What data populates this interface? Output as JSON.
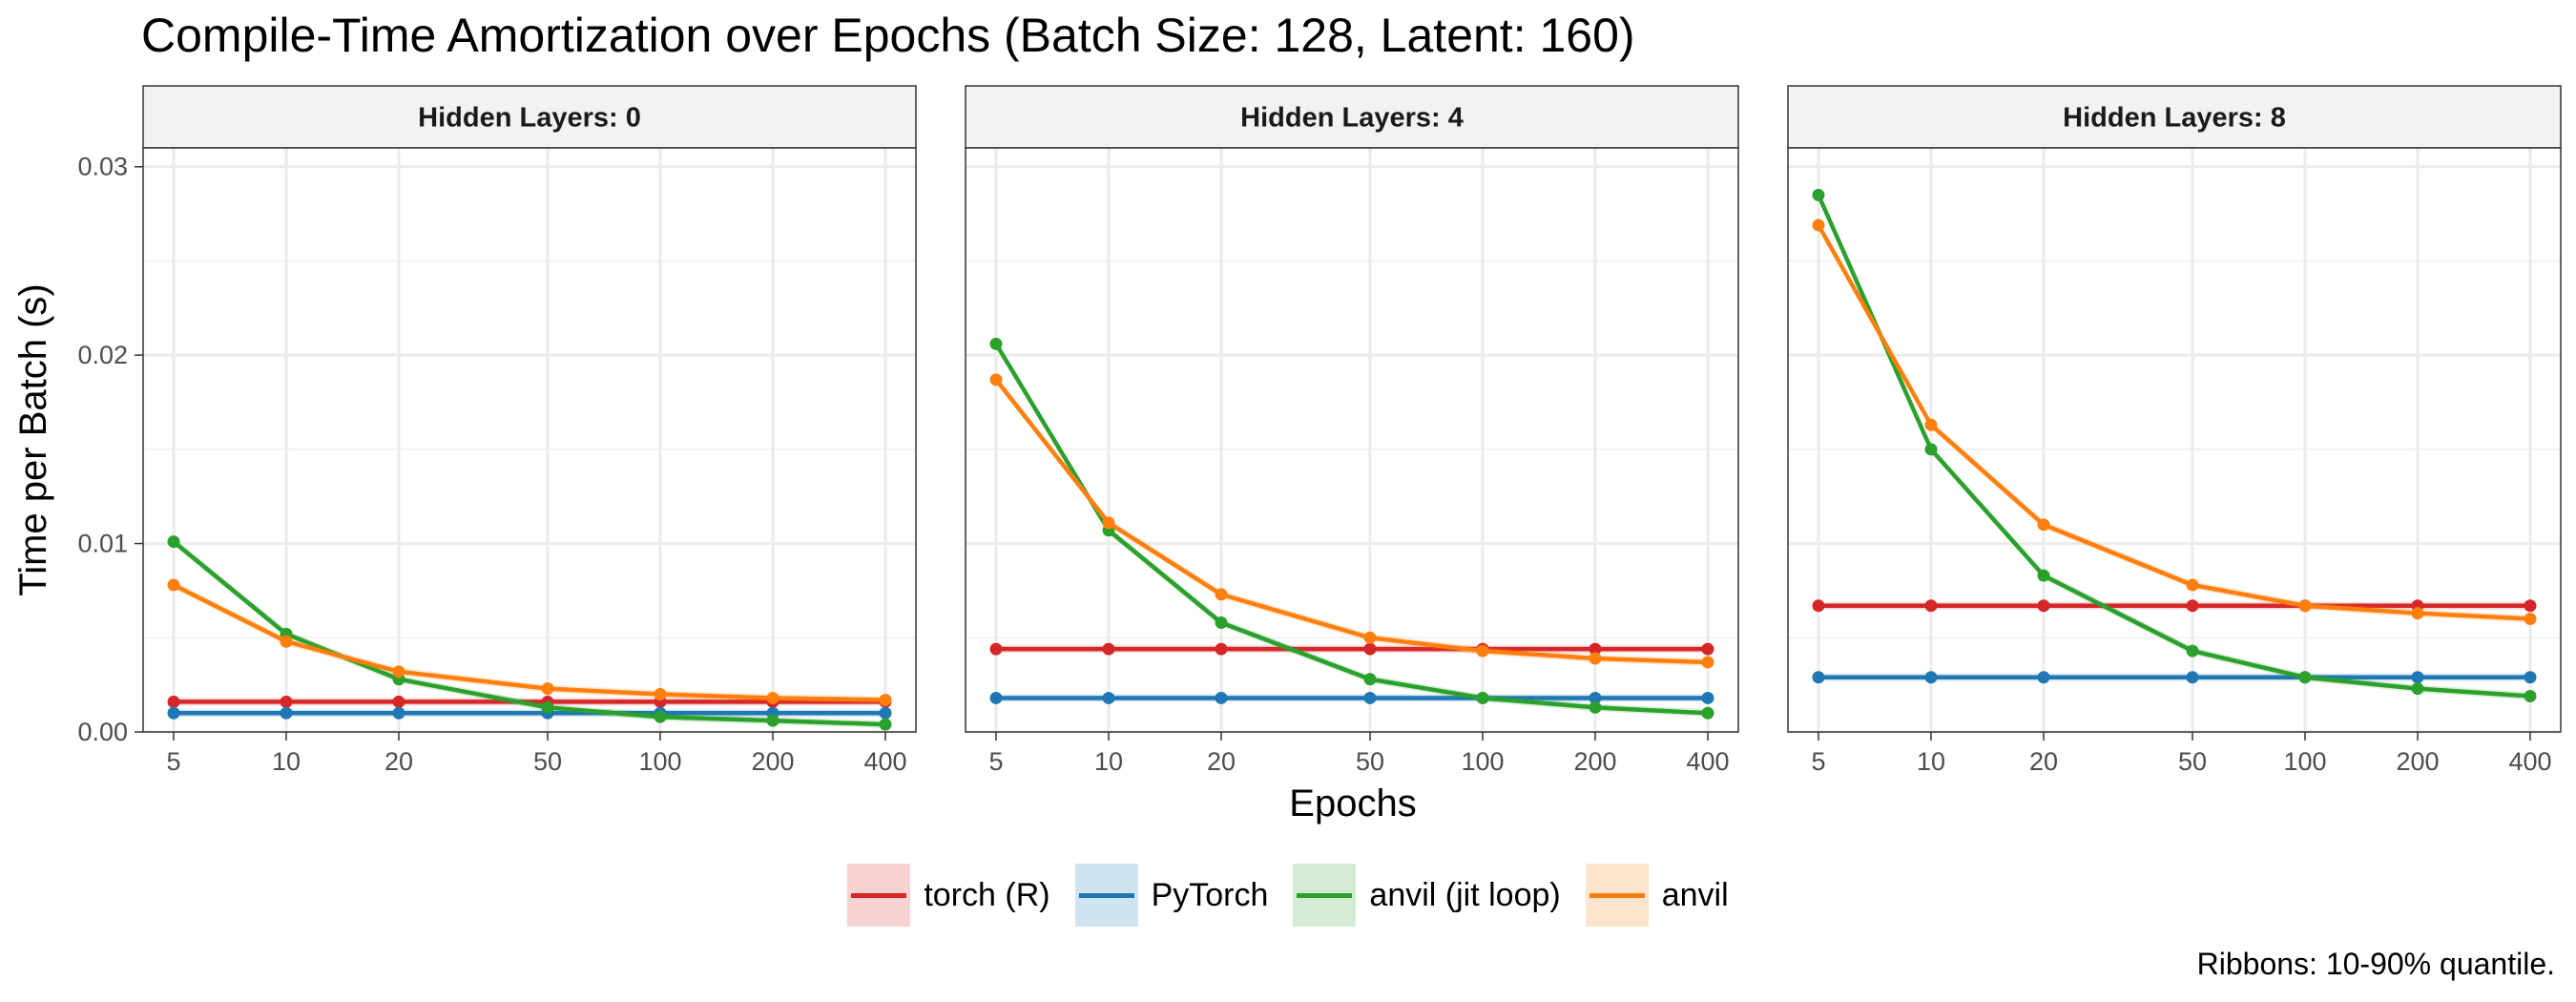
{
  "title": "Compile-Time Amortization over Epochs (Batch Size: 128, Latent: 160)",
  "caption": "Ribbons: 10-90% quantile.",
  "chart_data": {
    "type": "line",
    "title": "Compile-Time Amortization over Epochs (Batch Size: 128, Latent: 160)",
    "xlabel": "Epochs",
    "ylabel": "Time per Batch (s)",
    "x_scale": "log",
    "x": [
      5,
      10,
      20,
      50,
      100,
      200,
      400
    ],
    "x_ticks": [
      "5",
      "10",
      "20",
      "50",
      "100",
      "200",
      "400"
    ],
    "ylim": [
      0,
      0.031
    ],
    "y_ticks": [
      0,
      0.01,
      0.02,
      0.03
    ],
    "y_tick_labels": [
      "0.00",
      "0.01",
      "0.02",
      "0.03"
    ],
    "grid": true,
    "legend_position": "bottom",
    "series_colors": {
      "torch (R)": "#d62728",
      "PyTorch": "#1f77b4",
      "anvil (jit loop)": "#2ca02c",
      "anvil": "#ff7f0e"
    },
    "panels": [
      {
        "strip": "Hidden Layers: 0",
        "series": [
          {
            "name": "torch (R)",
            "values": [
              0.0016,
              0.0016,
              0.0016,
              0.0016,
              0.0016,
              0.0016,
              0.0016
            ]
          },
          {
            "name": "PyTorch",
            "values": [
              0.001,
              0.001,
              0.001,
              0.001,
              0.001,
              0.001,
              0.001
            ]
          },
          {
            "name": "anvil (jit loop)",
            "values": [
              0.0101,
              0.0052,
              0.0028,
              0.0013,
              0.0008,
              0.0006,
              0.0004
            ]
          },
          {
            "name": "anvil",
            "values": [
              0.0078,
              0.0048,
              0.0032,
              0.0023,
              0.002,
              0.0018,
              0.0017
            ]
          }
        ]
      },
      {
        "strip": "Hidden Layers: 4",
        "series": [
          {
            "name": "torch (R)",
            "values": [
              0.0044,
              0.0044,
              0.0044,
              0.0044,
              0.0044,
              0.0044,
              0.0044
            ]
          },
          {
            "name": "PyTorch",
            "values": [
              0.0018,
              0.0018,
              0.0018,
              0.0018,
              0.0018,
              0.0018,
              0.0018
            ]
          },
          {
            "name": "anvil (jit loop)",
            "values": [
              0.0206,
              0.0107,
              0.0058,
              0.0028,
              0.0018,
              0.0013,
              0.001
            ]
          },
          {
            "name": "anvil",
            "values": [
              0.0187,
              0.0111,
              0.0073,
              0.005,
              0.0043,
              0.0039,
              0.0037
            ]
          }
        ]
      },
      {
        "strip": "Hidden Layers: 8",
        "series": [
          {
            "name": "torch (R)",
            "values": [
              0.0067,
              0.0067,
              0.0067,
              0.0067,
              0.0067,
              0.0067,
              0.0067
            ]
          },
          {
            "name": "PyTorch",
            "values": [
              0.0029,
              0.0029,
              0.0029,
              0.0029,
              0.0029,
              0.0029,
              0.0029
            ]
          },
          {
            "name": "anvil (jit loop)",
            "values": [
              0.0285,
              0.015,
              0.0083,
              0.0043,
              0.0029,
              0.0023,
              0.0019
            ]
          },
          {
            "name": "anvil",
            "values": [
              0.0269,
              0.0163,
              0.011,
              0.0078,
              0.0067,
              0.0063,
              0.006
            ]
          }
        ]
      }
    ]
  },
  "legend": {
    "items": [
      {
        "label": "torch (R)",
        "color": "#d62728",
        "fill": "#f6d2d2"
      },
      {
        "label": "PyTorch",
        "color": "#1f77b4",
        "fill": "#d0e3f0"
      },
      {
        "label": "anvil (jit loop)",
        "color": "#2ca02c",
        "fill": "#d4ecd3"
      },
      {
        "label": "anvil",
        "color": "#ff7f0e",
        "fill": "#ffe4cd"
      }
    ]
  }
}
